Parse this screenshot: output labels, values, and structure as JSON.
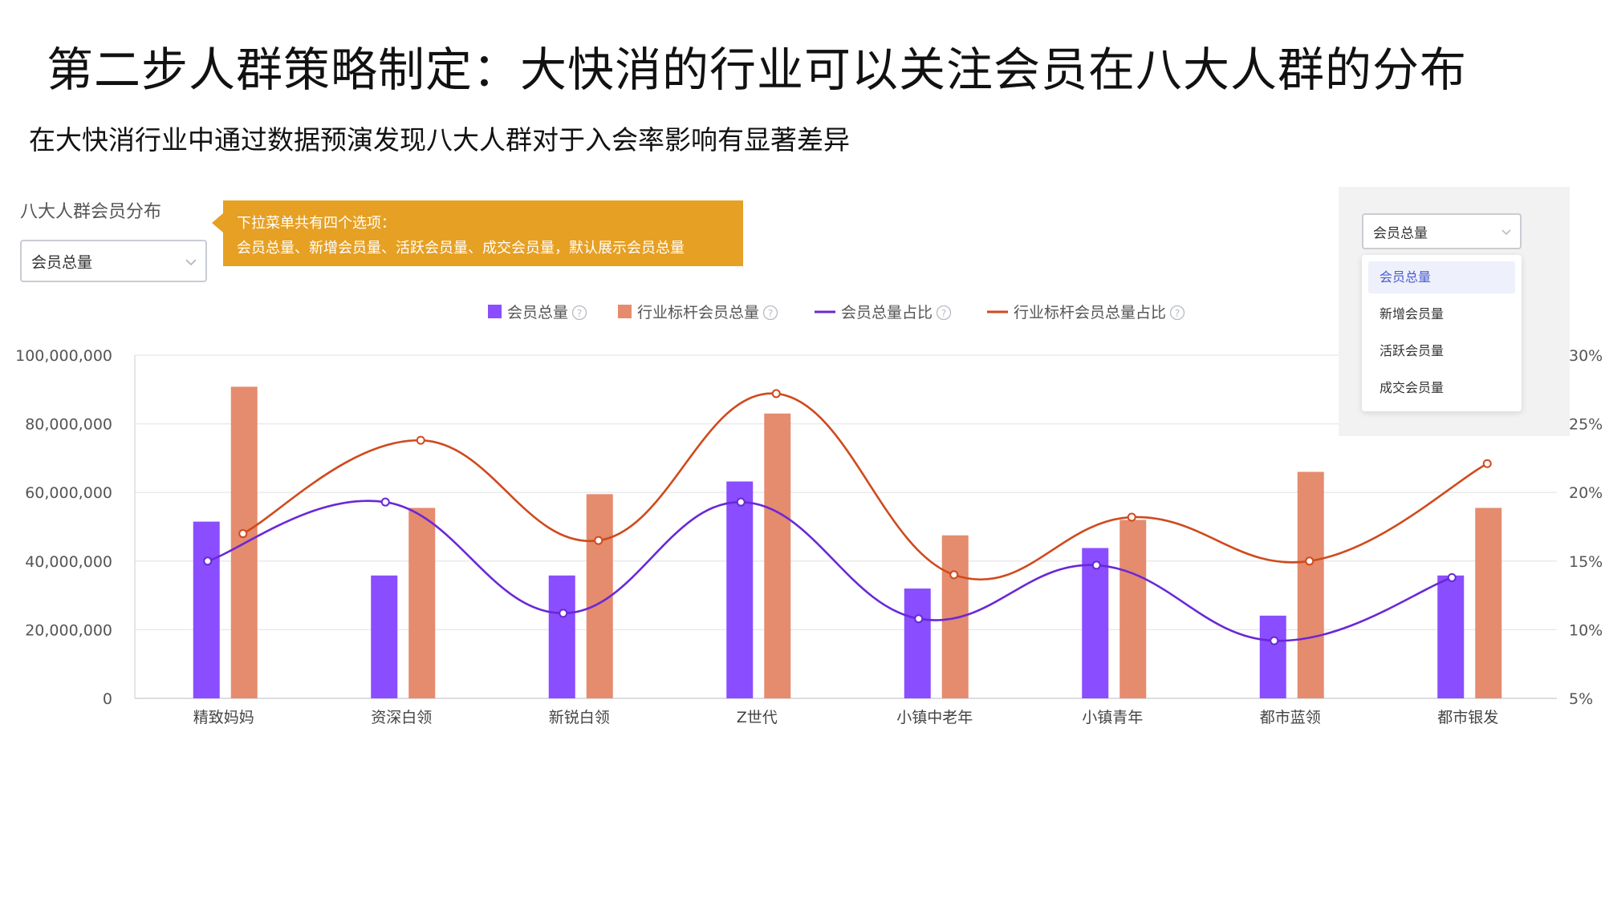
{
  "title": "第二步人群策略制定：大快消的行业可以关注会员在八大人群的分布",
  "subtitle": "在大快消行业中通过数据预演发现八大人群对于入会率影响有显著差异",
  "panel": {
    "title": "八大人群会员分布",
    "select_value": "会员总量",
    "callout_line1": "下拉菜单共有四个选项：",
    "callout_line2": "会员总量、新增会员量、活跃会员量、成交会员量，默认展示会员总量"
  },
  "dropdown": {
    "selected": "会员总量",
    "options": [
      "会员总量",
      "新增会员量",
      "活跃会员量",
      "成交会员量"
    ]
  },
  "colors": {
    "bar_member": "#8a4dff",
    "bar_benchmark": "#e58b6e",
    "line_member": "#6a28d6",
    "line_benchmark": "#cf4a1d",
    "callout": "#e6a024"
  },
  "icons": {
    "help": "question-circle-icon",
    "chevron": "chevron-down-icon"
  },
  "chart_data": {
    "type": "bar",
    "categories": [
      "精致妈妈",
      "资深白领",
      "新锐白领",
      "Z世代",
      "小镇中老年",
      "小镇青年",
      "都市蓝领",
      "都市银发"
    ],
    "series": [
      {
        "name": "会员总量",
        "type": "bar",
        "axis": "left",
        "values": [
          51500000,
          35800000,
          35800000,
          63200000,
          32000000,
          43800000,
          24100000,
          35800000
        ]
      },
      {
        "name": "行业标杆会员总量",
        "type": "bar",
        "axis": "left",
        "values": [
          90800000,
          55500000,
          59500000,
          83000000,
          47500000,
          52000000,
          66000000,
          55500000
        ]
      },
      {
        "name": "会员总量占比",
        "type": "line",
        "axis": "right",
        "values": [
          15.0,
          19.3,
          11.2,
          19.3,
          10.8,
          14.7,
          9.2,
          13.8
        ]
      },
      {
        "name": "行业标杆会员总量占比",
        "type": "line",
        "axis": "right",
        "values": [
          17.0,
          23.8,
          16.5,
          27.2,
          14.0,
          18.2,
          15.0,
          22.1
        ]
      }
    ],
    "left_axis": {
      "ylim": [
        0,
        100000000
      ],
      "ticks": [
        "0",
        "20,000,000",
        "40,000,000",
        "60,000,000",
        "80,000,000",
        "100,000,000"
      ]
    },
    "right_axis": {
      "ylim": [
        5,
        30
      ],
      "ticks": [
        "5%",
        "10%",
        "15%",
        "20%",
        "25%",
        "30%"
      ]
    },
    "grid": true,
    "legend_position": "top-center"
  }
}
